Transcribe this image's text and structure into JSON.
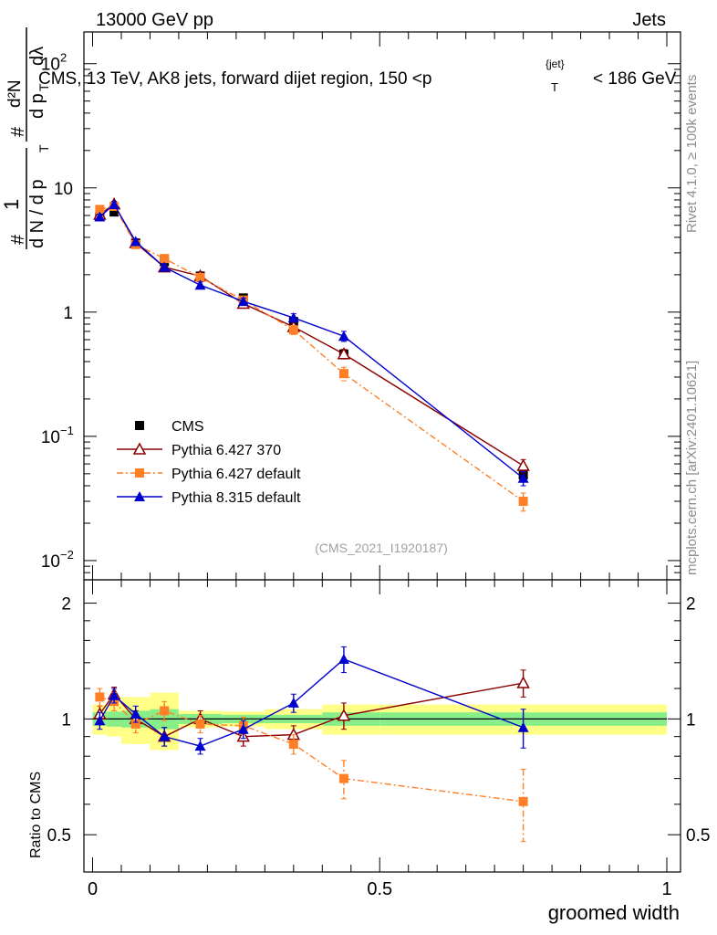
{
  "header": {
    "left": "13000 GeV pp",
    "right": "Jets"
  },
  "side_labels": {
    "rivet": "Rivet 4.1.0, ≥ 100k events",
    "mcplots": "mcplots.cern.ch [arXiv:2401.10621]"
  },
  "chart_data": [
    {
      "type": "line",
      "title": "CMS, 13 TeV, AK8 jets, forward dijet region, 150 <p",
      "title_sup": "{jet}",
      "title_sub": "T",
      "title_tail": "< 186 GeV",
      "analysis_id": "(CMS_2021_I1920187)",
      "yscale": "log",
      "ylim": [
        0.007,
        180
      ],
      "xlim": [
        -0.02,
        1.0
      ],
      "y_tick_labels": [
        "10^-2",
        "10^-1",
        "1",
        "10",
        "10^2"
      ],
      "ylabel": {
        "hash": "#",
        "numer": "1",
        "denom": "d N / d p",
        "denom_sub": "T",
        "hash2": "#",
        "numer2": "d²N",
        "denom2": "d p",
        "denom2_sub": "T",
        "denom2_tail": "dλ"
      },
      "legend_position": "lower-left",
      "x": [
        0.0125,
        0.0375,
        0.075,
        0.125,
        0.1875,
        0.2625,
        0.35,
        0.4375,
        0.75
      ],
      "series": [
        {
          "name": "CMS",
          "color": "#000000",
          "marker": "square",
          "values": [
            5.9,
            6.4,
            3.6,
            2.55,
            1.95,
            1.3,
            0.84,
            0.46,
            0.049
          ],
          "err": [
            0.25,
            0.35,
            0.2,
            0.15,
            0.1,
            0.07,
            0.05,
            0.04,
            0.006
          ]
        },
        {
          "name": "Pythia 6.427 370",
          "color": "#8b0000",
          "marker": "open-triangle",
          "values": [
            6.1,
            7.4,
            3.6,
            2.3,
            1.95,
            1.17,
            0.76,
            0.46,
            0.058
          ],
          "err": [
            0.3,
            0.4,
            0.2,
            0.15,
            0.1,
            0.07,
            0.06,
            0.04,
            0.007
          ]
        },
        {
          "name": "Pythia 6.427 default",
          "color": "#ff7f27",
          "marker": "square",
          "values": [
            6.7,
            7.1,
            3.5,
            2.7,
            1.9,
            1.25,
            0.72,
            0.32,
            0.03
          ],
          "err": [
            0.3,
            0.4,
            0.2,
            0.15,
            0.1,
            0.08,
            0.06,
            0.04,
            0.005
          ]
        },
        {
          "name": "Pythia 8.315 default",
          "color": "#0000cc",
          "marker": "triangle",
          "values": [
            5.85,
            7.35,
            3.7,
            2.3,
            1.65,
            1.22,
            0.9,
            0.64,
            0.046
          ],
          "err": [
            0.3,
            0.4,
            0.2,
            0.15,
            0.1,
            0.08,
            0.07,
            0.06,
            0.006
          ]
        }
      ]
    },
    {
      "type": "line",
      "ylabel": "Ratio to CMS",
      "xlabel": "groomed width",
      "yscale": "log",
      "ylim": [
        0.4,
        2.3
      ],
      "xlim": [
        -0.02,
        1.0
      ],
      "y_tick_labels": [
        "0.5",
        "1",
        "2"
      ],
      "x_tick_labels": [
        "0",
        "0.5",
        "1"
      ],
      "bands": {
        "edges": [
          0,
          0.025,
          0.05,
          0.1,
          0.15,
          0.225,
          0.3,
          0.4,
          0.5,
          1.0
        ],
        "green_half": [
          0.04,
          0.045,
          0.05,
          0.06,
          0.03,
          0.025,
          0.025,
          0.04,
          0.04
        ],
        "yellow_half": [
          0.09,
          0.1,
          0.14,
          0.17,
          0.05,
          0.045,
          0.06,
          0.09,
          0.09
        ]
      },
      "x": [
        0.0125,
        0.0375,
        0.075,
        0.125,
        0.1875,
        0.2625,
        0.35,
        0.4375,
        0.75
      ],
      "series": [
        {
          "name": "Pythia 6.427 370",
          "color": "#8b0000",
          "marker": "open-triangle",
          "values": [
            1.03,
            1.16,
            1.0,
            0.9,
            1.0,
            0.9,
            0.91,
            1.02,
            1.24
          ],
          "err": [
            0.05,
            0.05,
            0.05,
            0.05,
            0.05,
            0.05,
            0.05,
            0.08,
            0.1
          ]
        },
        {
          "name": "Pythia 6.427 default",
          "color": "#ff7f27",
          "marker": "square",
          "values": [
            1.14,
            1.11,
            0.97,
            1.05,
            0.97,
            0.96,
            0.86,
            0.7,
            0.61
          ],
          "err": [
            0.06,
            0.06,
            0.05,
            0.06,
            0.05,
            0.05,
            0.05,
            0.08,
            0.13
          ]
        },
        {
          "name": "Pythia 8.315 default",
          "color": "#0000cc",
          "marker": "triangle",
          "values": [
            0.99,
            1.15,
            1.03,
            0.9,
            0.85,
            0.94,
            1.1,
            1.43,
            0.95
          ],
          "err": [
            0.05,
            0.05,
            0.05,
            0.05,
            0.04,
            0.05,
            0.06,
            0.11,
            0.11
          ]
        }
      ]
    }
  ]
}
